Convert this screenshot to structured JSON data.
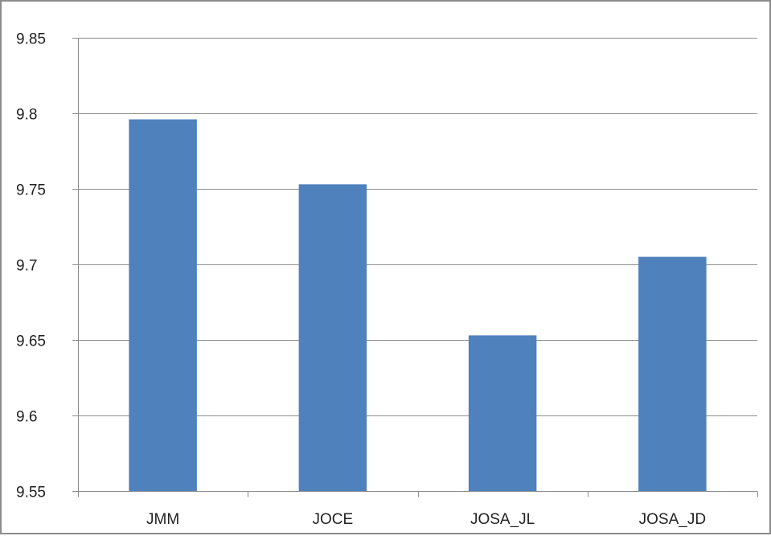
{
  "chart_data": {
    "type": "bar",
    "title": "",
    "xlabel": "",
    "ylabel": "",
    "categories": [
      "JMM",
      "JOCE",
      "JOSA_JL",
      "JOSA_JD"
    ],
    "values": [
      9.796,
      9.753,
      9.653,
      9.705
    ],
    "ylim": [
      9.55,
      9.85
    ],
    "yticks": [
      "9.55",
      "9.6",
      "9.65",
      "9.7",
      "9.75",
      "9.8",
      "9.85"
    ],
    "grid": true,
    "legend": "none",
    "colors": {
      "bar": "#4f81bd",
      "grid": "#8c8c8c",
      "axis": "#8c8c8c",
      "text": "#222222"
    }
  }
}
